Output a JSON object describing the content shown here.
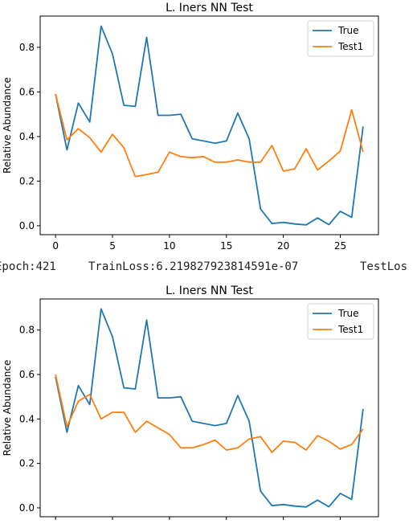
{
  "log_line": {
    "epoch": "Epoch:421",
    "train_loss": "TrainLoss:6.219827923814591e-07",
    "test_loss": "TestLos"
  },
  "chart_data": [
    {
      "type": "line",
      "title": "L. Iners NN Test",
      "xlabel": "",
      "ylabel": "Relative Abundance",
      "xlim": [
        -1.35,
        28.35
      ],
      "ylim": [
        -0.04,
        0.94
      ],
      "xticks": [
        0,
        5,
        10,
        15,
        20,
        25
      ],
      "yticks": [
        0.0,
        0.2,
        0.4,
        0.6,
        0.8
      ],
      "ytick_labels": [
        "0.0",
        "0.2",
        "0.4",
        "0.6",
        "0.8"
      ],
      "grid": false,
      "legend_position": "top-right",
      "x": [
        0,
        1,
        2,
        3,
        4,
        5,
        6,
        7,
        8,
        9,
        10,
        11,
        12,
        13,
        14,
        15,
        16,
        17,
        18,
        19,
        20,
        21,
        22,
        23,
        24,
        25,
        26,
        27
      ],
      "series": [
        {
          "name": "True",
          "color": "#1f77b4",
          "values": [
            0.59,
            0.34,
            0.55,
            0.465,
            0.895,
            0.77,
            0.54,
            0.535,
            0.845,
            0.495,
            0.495,
            0.5,
            0.39,
            0.38,
            0.37,
            0.38,
            0.505,
            0.39,
            0.075,
            0.01,
            0.015,
            0.008,
            0.004,
            0.035,
            0.005,
            0.065,
            0.038,
            0.445
          ]
        },
        {
          "name": "Test1",
          "color": "#ff7f0e",
          "values": [
            0.59,
            0.385,
            0.435,
            0.395,
            0.33,
            0.41,
            0.35,
            0.22,
            0.23,
            0.24,
            0.33,
            0.31,
            0.305,
            0.31,
            0.285,
            0.285,
            0.295,
            0.285,
            0.285,
            0.36,
            0.245,
            0.255,
            0.345,
            0.25,
            0.29,
            0.335,
            0.52,
            0.33
          ]
        }
      ]
    },
    {
      "type": "line",
      "title": "L. Iners NN Test",
      "xlabel": "",
      "ylabel": "Relative Abundance",
      "xlim": [
        -1.35,
        28.35
      ],
      "ylim": [
        -0.04,
        0.94
      ],
      "xticks": [
        0,
        5,
        10,
        15,
        20,
        25
      ],
      "yticks": [
        0.0,
        0.2,
        0.4,
        0.6,
        0.8
      ],
      "ytick_labels": [
        "0.0",
        "0.2",
        "0.4",
        "0.6",
        "0.8"
      ],
      "grid": false,
      "legend_position": "top-right",
      "x": [
        0,
        1,
        2,
        3,
        4,
        5,
        6,
        7,
        8,
        9,
        10,
        11,
        12,
        13,
        14,
        15,
        16,
        17,
        18,
        19,
        20,
        21,
        22,
        23,
        24,
        25,
        26,
        27
      ],
      "series": [
        {
          "name": "True",
          "color": "#1f77b4",
          "values": [
            0.59,
            0.34,
            0.55,
            0.465,
            0.895,
            0.77,
            0.54,
            0.535,
            0.845,
            0.495,
            0.495,
            0.5,
            0.39,
            0.38,
            0.37,
            0.38,
            0.505,
            0.39,
            0.075,
            0.01,
            0.015,
            0.008,
            0.004,
            0.035,
            0.005,
            0.065,
            0.038,
            0.445
          ]
        },
        {
          "name": "Test1",
          "color": "#ff7f0e",
          "values": [
            0.6,
            0.365,
            0.48,
            0.51,
            0.4,
            0.43,
            0.43,
            0.34,
            0.39,
            0.36,
            0.33,
            0.27,
            0.27,
            0.285,
            0.305,
            0.26,
            0.27,
            0.31,
            0.32,
            0.25,
            0.3,
            0.295,
            0.26,
            0.325,
            0.3,
            0.265,
            0.285,
            0.355
          ]
        }
      ]
    }
  ]
}
